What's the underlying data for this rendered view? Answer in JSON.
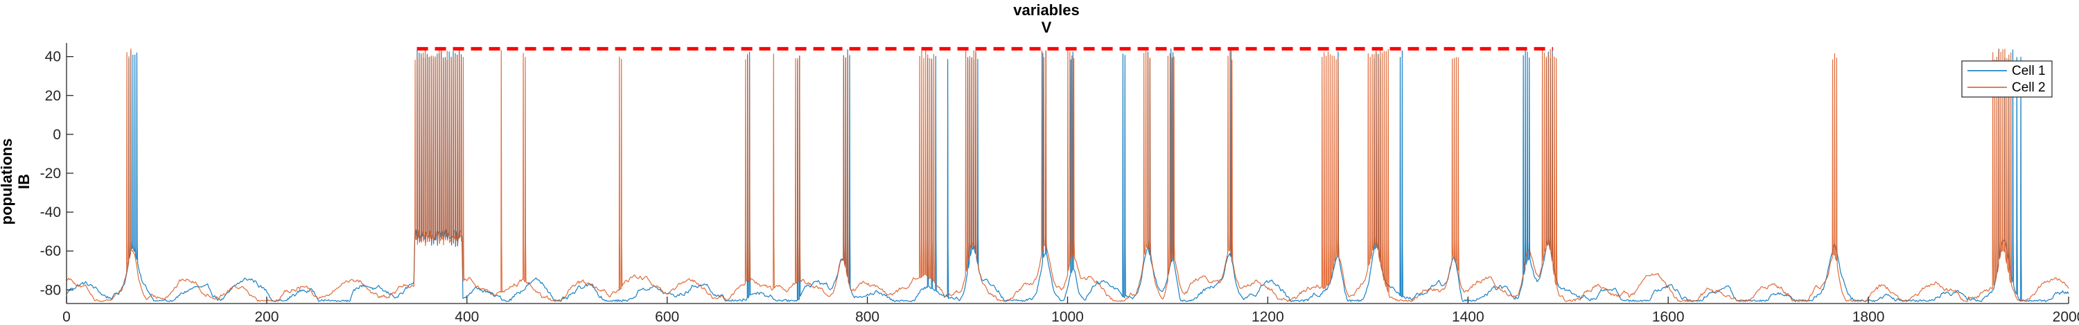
{
  "chart_data": {
    "type": "line",
    "title": "variables",
    "subtitle": "V",
    "ylabel": "populations",
    "ylabel2": "IB",
    "xlabel": "",
    "xlim": [
      0,
      2000
    ],
    "ylim": [
      -87,
      47
    ],
    "xticks": [
      0,
      200,
      400,
      600,
      800,
      1000,
      1200,
      1400,
      1600,
      1800,
      2000
    ],
    "yticks": [
      -80,
      -60,
      -40,
      -20,
      0,
      20,
      40
    ],
    "grid": false,
    "legend_position": "top-right",
    "series": [
      {
        "name": "Cell 1",
        "color": "#0072BD",
        "rest_level": -82,
        "spikes": [
          62,
          64,
          66,
          68,
          70,
          350,
          352,
          354,
          356,
          358,
          360,
          362,
          364,
          366,
          368,
          370,
          372,
          374,
          376,
          378,
          380,
          382,
          384,
          386,
          388,
          390,
          392,
          394,
          680,
          682,
          730,
          732,
          776,
          778,
          780,
          782,
          860,
          864,
          868,
          880,
          900,
          902,
          904,
          906,
          908,
          910,
          975,
          978,
          1003,
          1005,
          1055,
          1057,
          1080,
          1082,
          1103,
          1105,
          1163,
          1270,
          1306,
          1308,
          1310,
          1312,
          1332,
          1334,
          1455,
          1457,
          1459,
          1461,
          1478,
          1480,
          1482,
          1484,
          1930,
          1936,
          1940,
          1944,
          1948,
          1952
        ]
      },
      {
        "name": "Cell 2",
        "color": "#D95319",
        "rest_level": -80,
        "spikes": [
          60,
          62,
          64,
          348,
          350,
          352,
          354,
          356,
          358,
          360,
          362,
          364,
          366,
          368,
          370,
          372,
          374,
          376,
          378,
          380,
          382,
          384,
          386,
          388,
          390,
          392,
          394,
          396,
          434,
          456,
          458,
          552,
          554,
          678,
          680,
          682,
          706,
          728,
          730,
          732,
          776,
          778,
          780,
          852,
          854,
          856,
          858,
          860,
          862,
          864,
          866,
          898,
          900,
          902,
          904,
          906,
          908,
          974,
          976,
          978,
          1000,
          1002,
          1004,
          1006,
          1076,
          1078,
          1080,
          1082,
          1100,
          1102,
          1104,
          1106,
          1160,
          1162,
          1164,
          1254,
          1256,
          1258,
          1260,
          1262,
          1264,
          1266,
          1268,
          1270,
          1300,
          1302,
          1304,
          1306,
          1308,
          1310,
          1312,
          1314,
          1316,
          1318,
          1320,
          1384,
          1386,
          1388,
          1390,
          1474,
          1476,
          1478,
          1480,
          1482,
          1484,
          1486,
          1488,
          1764,
          1766,
          1768,
          1924,
          1926,
          1928,
          1930,
          1932,
          1934,
          1936,
          1938,
          1940,
          1942
        ]
      }
    ],
    "annotation_dashes": {
      "color": "#FF0000",
      "y": 44,
      "x_start": 350,
      "x_end": 1485
    }
  }
}
